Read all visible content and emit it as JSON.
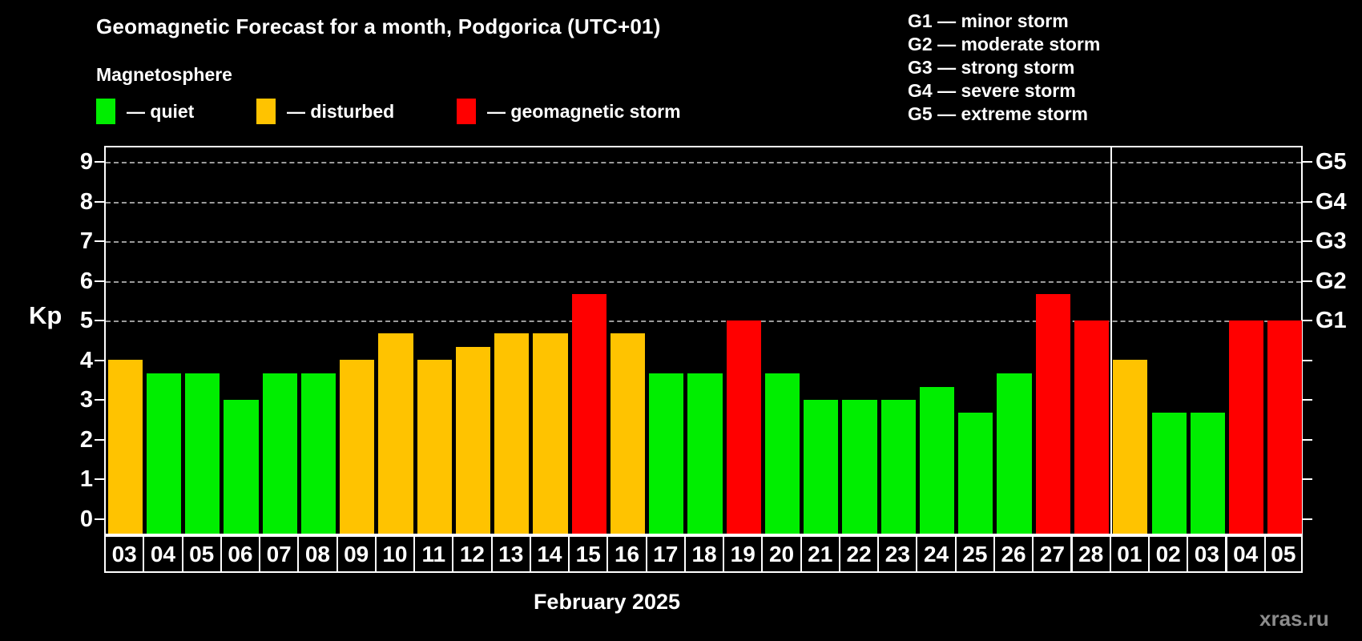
{
  "title": "Geomagnetic Forecast for a month, Podgorica (UTC+01)",
  "subtitle": "Magnetosphere",
  "legend": {
    "quiet": {
      "label": "— quiet",
      "color": "#00ee00"
    },
    "disturbed": {
      "label": "— disturbed",
      "color": "#ffc300"
    },
    "storm": {
      "label": "— geomagnetic storm",
      "color": "#ff0000"
    }
  },
  "storm_scale_legend": [
    "G1 — minor storm",
    "G2 — moderate storm",
    "G3 — strong storm",
    "G4 — severe storm",
    "G5 — extreme storm"
  ],
  "watermark": "xras.ru",
  "chart_data": {
    "type": "bar",
    "title": "Geomagnetic Forecast for a month, Podgorica (UTC+01)",
    "xlabel": "February 2025",
    "ylabel": "Kp",
    "ylim": [
      0,
      9
    ],
    "y_ticks_left": [
      0,
      1,
      2,
      3,
      4,
      5,
      6,
      7,
      8,
      9
    ],
    "y_ticks_right_labels": {
      "5": "G1",
      "6": "G2",
      "7": "G3",
      "8": "G4",
      "9": "G5"
    },
    "gridlines_at": [
      5,
      6,
      7,
      8,
      9
    ],
    "grid": "dashed horizontal at storm levels only",
    "legend_position": "top-left",
    "month_separator_after_index": 25,
    "categories": [
      "03",
      "04",
      "05",
      "06",
      "07",
      "08",
      "09",
      "10",
      "11",
      "12",
      "13",
      "14",
      "15",
      "16",
      "17",
      "18",
      "19",
      "20",
      "21",
      "22",
      "23",
      "24",
      "25",
      "26",
      "27",
      "28",
      "01",
      "02",
      "03",
      "04",
      "05"
    ],
    "values": [
      4.0,
      3.67,
      3.67,
      3.0,
      3.67,
      3.67,
      4.0,
      4.67,
      4.0,
      4.33,
      4.67,
      4.67,
      5.67,
      4.67,
      3.67,
      3.67,
      5.0,
      3.67,
      3.0,
      3.0,
      3.0,
      3.33,
      2.67,
      3.67,
      5.67,
      5.0,
      4.0,
      2.67,
      2.67,
      5.0,
      5.0
    ],
    "statuses": [
      "disturbed",
      "quiet",
      "quiet",
      "quiet",
      "quiet",
      "quiet",
      "disturbed",
      "disturbed",
      "disturbed",
      "disturbed",
      "disturbed",
      "disturbed",
      "storm",
      "disturbed",
      "quiet",
      "quiet",
      "storm",
      "quiet",
      "quiet",
      "quiet",
      "quiet",
      "quiet",
      "quiet",
      "quiet",
      "storm",
      "storm",
      "disturbed",
      "quiet",
      "quiet",
      "storm",
      "storm"
    ]
  },
  "colors": {
    "background": "#000000",
    "quiet": "#00ee00",
    "disturbed": "#ffc300",
    "storm": "#ff0000",
    "gridline": "#9b9b9b",
    "frame": "#ffffff",
    "watermark": "#8c8c8c"
  }
}
